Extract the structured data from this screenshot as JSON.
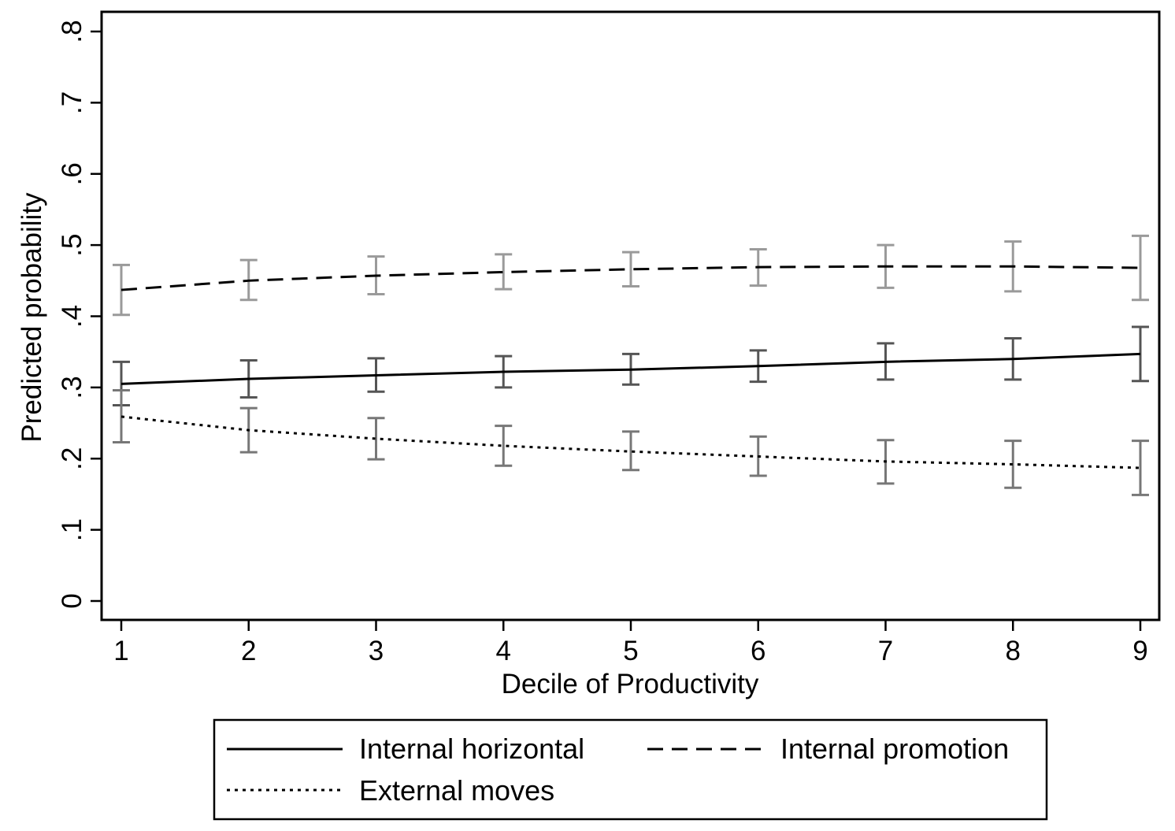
{
  "chart_data": {
    "type": "line",
    "title": "",
    "xlabel": "Decile of Productivity",
    "ylabel": "Predicted probability",
    "x": [
      1,
      2,
      3,
      4,
      5,
      6,
      7,
      8,
      9
    ],
    "xlim": [
      1,
      9
    ],
    "ylim": [
      0,
      0.8
    ],
    "x_ticks": [
      1,
      2,
      3,
      4,
      5,
      6,
      7,
      8,
      9
    ],
    "x_tick_labels": [
      "1",
      "2",
      "3",
      "4",
      "5",
      "6",
      "7",
      "8",
      "9"
    ],
    "y_ticks": [
      0,
      0.1,
      0.2,
      0.3,
      0.4,
      0.5,
      0.6,
      0.7,
      0.8
    ],
    "y_tick_labels": [
      "0",
      ".1",
      ".2",
      ".3",
      ".4",
      ".5",
      ".6",
      ".7",
      ".8"
    ],
    "grid": false,
    "legend_position": "bottom",
    "series": [
      {
        "name": "Internal horizontal",
        "line_style": "solid",
        "line_color": "#000000",
        "ci_color": "#555555",
        "values": [
          0.305,
          0.312,
          0.317,
          0.322,
          0.325,
          0.33,
          0.336,
          0.34,
          0.347
        ],
        "ci_low": [
          0.275,
          0.286,
          0.294,
          0.3,
          0.304,
          0.308,
          0.311,
          0.311,
          0.309
        ],
        "ci_high": [
          0.336,
          0.338,
          0.341,
          0.344,
          0.347,
          0.352,
          0.362,
          0.369,
          0.385
        ]
      },
      {
        "name": "Internal promotion",
        "line_style": "dashed",
        "line_color": "#000000",
        "ci_color": "#9a9a9a",
        "values": [
          0.437,
          0.45,
          0.457,
          0.462,
          0.466,
          0.469,
          0.47,
          0.47,
          0.468
        ],
        "ci_low": [
          0.402,
          0.423,
          0.431,
          0.438,
          0.442,
          0.443,
          0.44,
          0.435,
          0.423
        ],
        "ci_high": [
          0.472,
          0.479,
          0.484,
          0.487,
          0.49,
          0.494,
          0.5,
          0.505,
          0.513
        ]
      },
      {
        "name": "External moves",
        "line_style": "dotted",
        "line_color": "#000000",
        "ci_color": "#777777",
        "values": [
          0.259,
          0.24,
          0.228,
          0.218,
          0.21,
          0.203,
          0.196,
          0.192,
          0.187
        ],
        "ci_low": [
          0.223,
          0.209,
          0.199,
          0.19,
          0.184,
          0.176,
          0.165,
          0.159,
          0.149
        ],
        "ci_high": [
          0.296,
          0.271,
          0.257,
          0.246,
          0.238,
          0.231,
          0.226,
          0.225,
          0.225
        ]
      }
    ]
  }
}
